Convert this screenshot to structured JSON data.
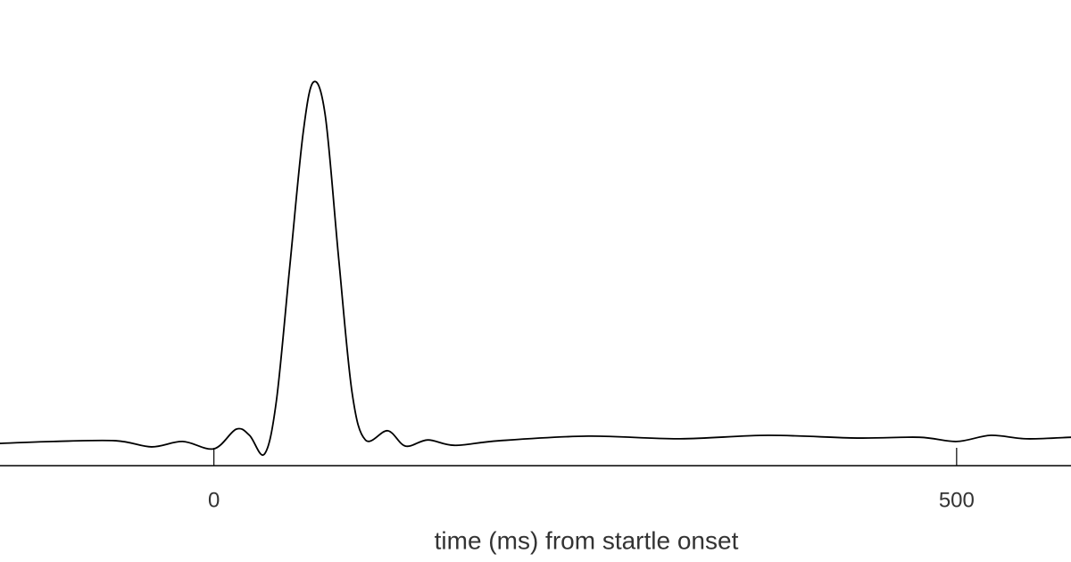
{
  "chart_data": {
    "type": "line",
    "x_label": "time (ms) from startle onset",
    "x": [
      -144,
      -108,
      -66,
      -42,
      -21,
      0,
      15,
      24,
      34,
      42,
      51,
      60,
      67,
      75,
      84,
      93,
      102,
      117,
      129,
      144,
      162,
      192,
      252,
      313,
      373,
      433,
      475,
      500,
      523,
      547,
      577
    ],
    "values": [
      5.8,
      6.3,
      6.5,
      4.9,
      6.3,
      4.4,
      9.5,
      7.9,
      3.0,
      16.7,
      51.6,
      86.5,
      100,
      91.2,
      54,
      19.1,
      6.7,
      9.1,
      5.1,
      6.7,
      5.3,
      6.5,
      7.7,
      7.0,
      7.9,
      7.2,
      7.4,
      6.3,
      7.9,
      7.0,
      7.4
    ],
    "color": "#000000",
    "xlim": [
      -144,
      577
    ],
    "xticks": [
      0,
      500
    ],
    "ylim": [
      0,
      120
    ]
  }
}
